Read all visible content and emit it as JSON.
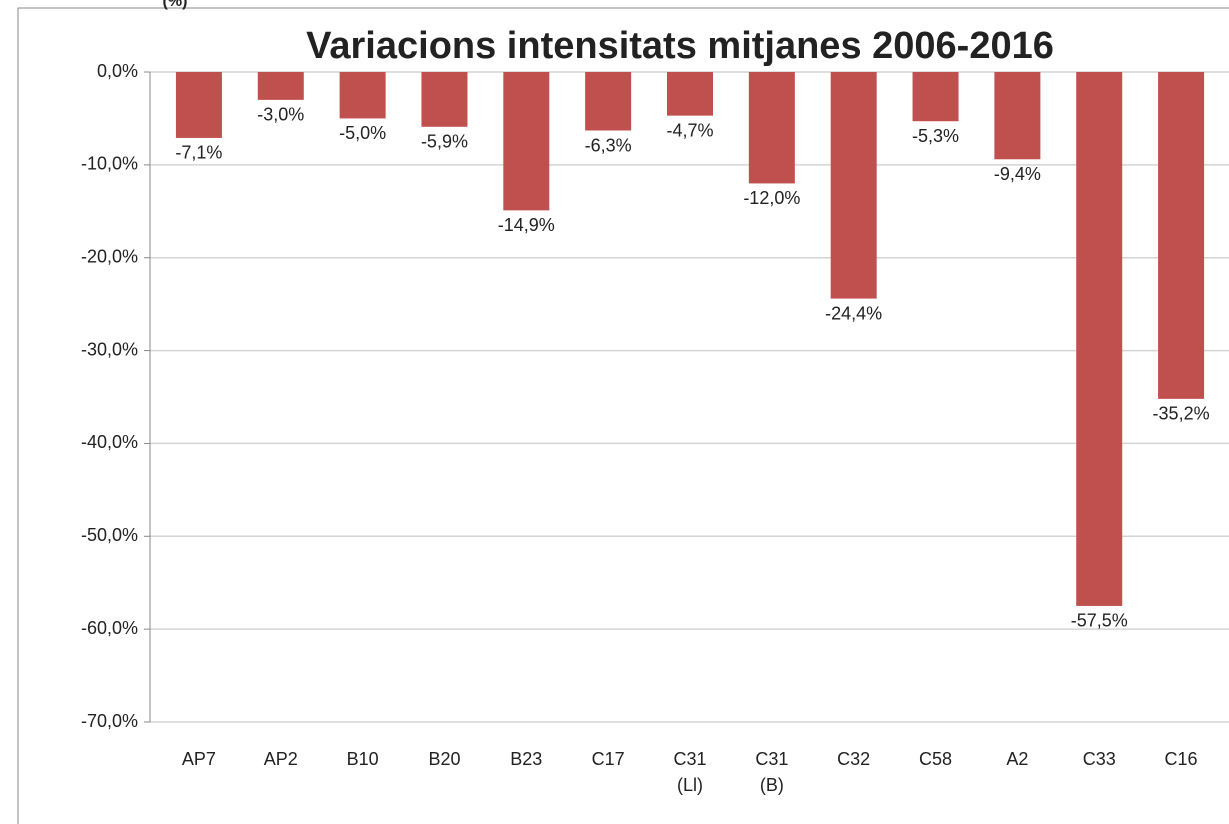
{
  "chart_data": {
    "type": "bar",
    "title": "Variacions intensitats mitjanes 2006-2016",
    "y_label": "(%)",
    "categories": [
      "AP7",
      "AP2",
      "B10",
      "B20",
      "B23",
      "C17",
      "C31 (Ll)",
      "C31 (B)",
      "C32",
      "C58",
      "A2",
      "C33",
      "C16"
    ],
    "values": [
      -7.1,
      -3.0,
      -5.0,
      -5.9,
      -14.9,
      -6.3,
      -4.7,
      -12.0,
      -24.4,
      -5.3,
      -9.4,
      -57.5,
      -35.2
    ],
    "value_labels": [
      "-7,1%",
      "-3,0%",
      "-5,0%",
      "-5,9%",
      "-14,9%",
      "-6,3%",
      "-4,7%",
      "-12,0%",
      "-24,4%",
      "-5,3%",
      "-9,4%",
      "-57,5%",
      "-35,2%"
    ],
    "color": "#c0504d",
    "ylim": [
      -70,
      0
    ],
    "yticks": [
      {
        "value": 0,
        "label": "0,0%"
      },
      {
        "value": -10,
        "label": "-10,0%"
      },
      {
        "value": -20,
        "label": "-20,0%"
      },
      {
        "value": -30,
        "label": "-30,0%"
      },
      {
        "value": -40,
        "label": "-40,0%"
      },
      {
        "value": -50,
        "label": "-50,0%"
      },
      {
        "value": -60,
        "label": "-60,0%"
      },
      {
        "value": -70,
        "label": "-70,0%"
      }
    ],
    "grid": true
  }
}
